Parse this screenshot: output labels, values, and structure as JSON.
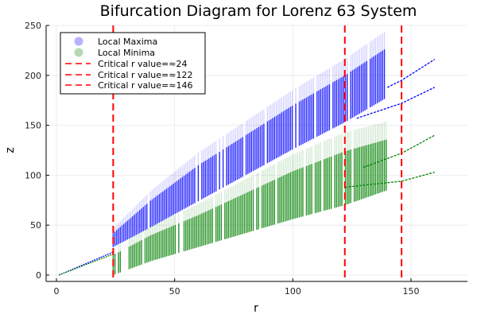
{
  "chart_data": {
    "type": "scatter",
    "title": "Bifurcation Diagram for Lorenz 63 System",
    "xlabel": "r",
    "ylabel": "z",
    "xlim": [
      -4.5,
      164
    ],
    "ylim": [
      -6,
      250
    ],
    "xticks": [
      0,
      50,
      100,
      150
    ],
    "yticks": [
      0,
      50,
      100,
      150,
      200,
      250
    ],
    "xtick_labels": [
      "0",
      "50",
      "100",
      "150"
    ],
    "ytick_labels": [
      "0",
      "50",
      "100",
      "150",
      "200",
      "250"
    ],
    "grid": true,
    "legend_position": "top-left",
    "series": [
      {
        "name": "Local Maxima",
        "color": "#0000ff",
        "legend_color": "#b3b3ff",
        "steady_branch": [
          [
            1,
            0
          ],
          [
            24,
            23
          ]
        ],
        "chaotic_band": {
          "r": [
            24,
            40,
            60,
            80,
            100,
            122,
            140
          ],
          "z_low": [
            28,
            48,
            74,
            100,
            126,
            153,
            178
          ],
          "z_high": [
            42,
            75,
            110,
            140,
            170,
            200,
            228
          ]
        },
        "periodic_branches": [
          [
            [
              127,
              157
            ],
            [
              146,
              172
            ],
            [
              160,
              188
            ]
          ],
          [
            [
              140,
              188
            ],
            [
              146,
              195
            ],
            [
              160,
              216
            ]
          ]
        ]
      },
      {
        "name": "Local Minima",
        "color": "#008000",
        "legend_color": "#b3d9b3",
        "steady_branch": [
          [
            1,
            0
          ],
          [
            24,
            21
          ]
        ],
        "chaotic_band": {
          "r": [
            24,
            40,
            60,
            80,
            100,
            122,
            140
          ],
          "z_low": [
            0,
            14,
            28,
            42,
            56,
            70,
            85
          ],
          "z_high": [
            20,
            40,
            60,
            82,
            104,
            124,
            136
          ]
        },
        "periodic_branches": [
          [
            [
              122,
              88
            ],
            [
              146,
              94
            ],
            [
              160,
              103
            ]
          ],
          [
            [
              130,
              108
            ],
            [
              146,
              122
            ],
            [
              160,
              140
            ]
          ]
        ]
      },
      {
        "name": "Critical r value=≈24",
        "type": "vline",
        "x": 24,
        "color": "#ff0000"
      },
      {
        "name": "Critical r value=≈122",
        "type": "vline",
        "x": 122,
        "color": "#ff0000"
      },
      {
        "name": "Critical r value=≈146",
        "type": "vline",
        "x": 146,
        "color": "#ff0000"
      }
    ]
  }
}
